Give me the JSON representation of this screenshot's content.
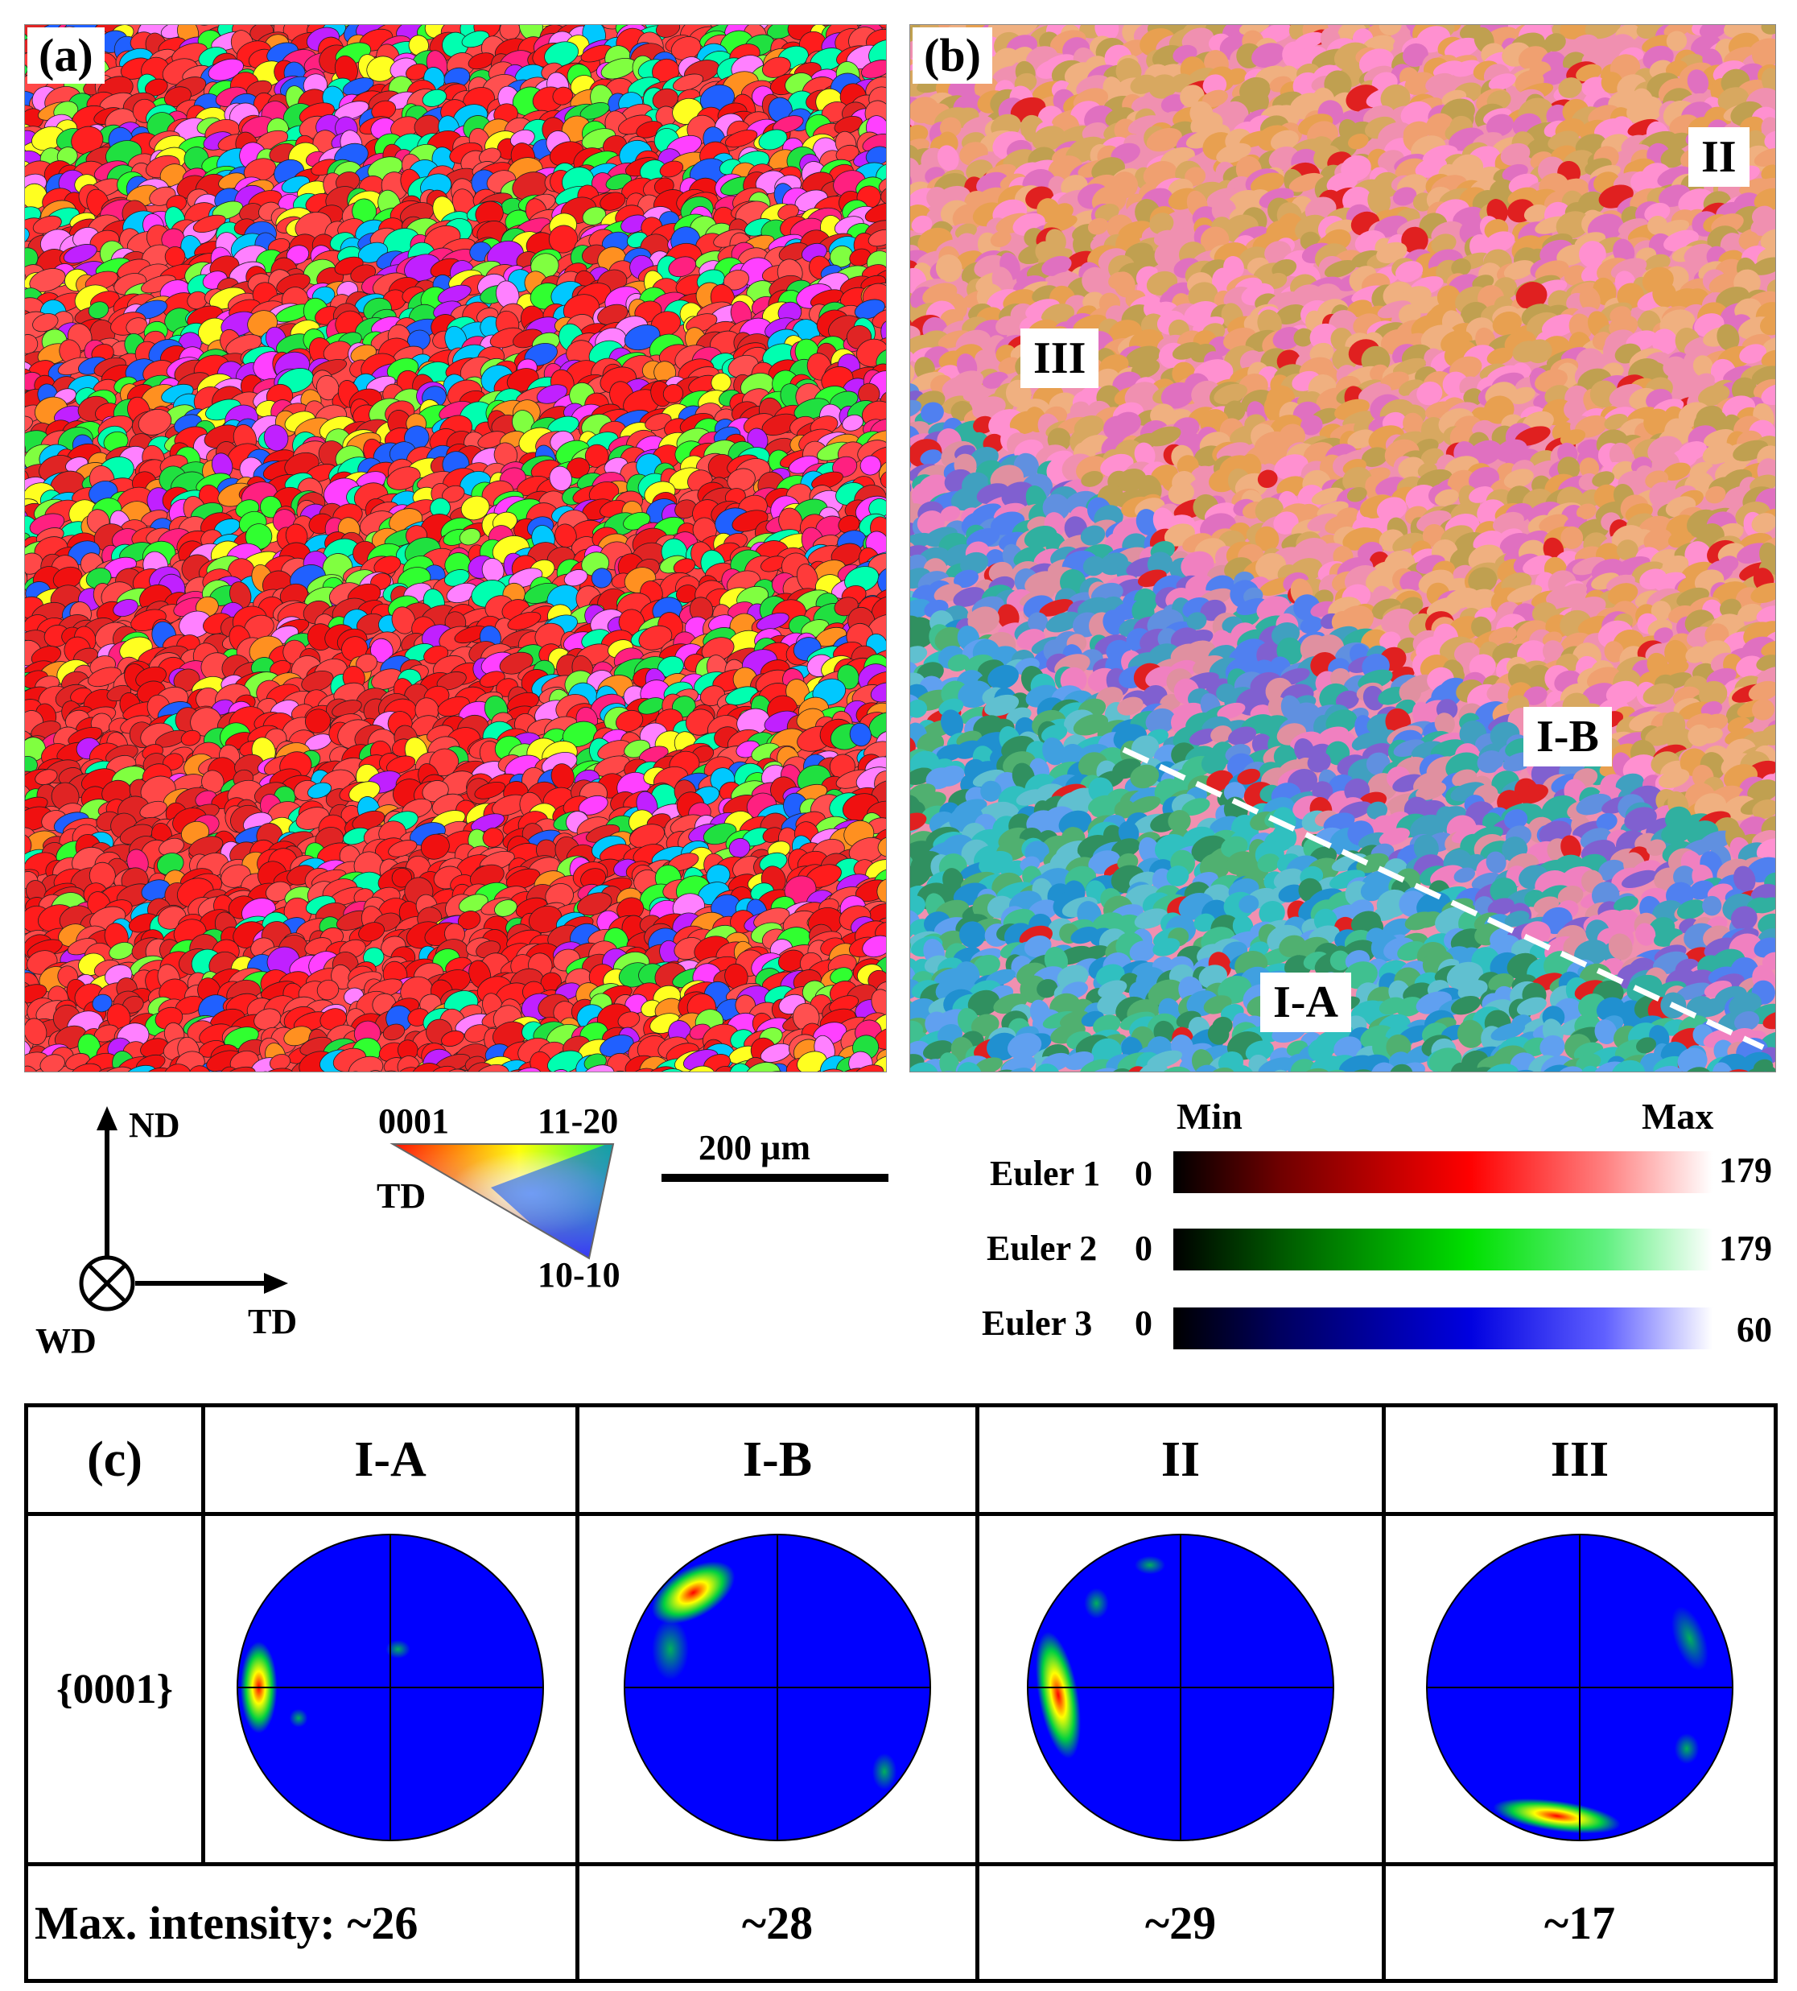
{
  "panel_a": {
    "tag": "(a)"
  },
  "panel_b": {
    "tag": "(b)",
    "regions": {
      "ii": "II",
      "iii": "III",
      "ib": "I-B",
      "ia": "I-A"
    }
  },
  "axes": {
    "nd": "ND",
    "td": "TD",
    "wd": "WD"
  },
  "ipf_key": {
    "top_left": "0001",
    "top_right": "11-20",
    "bottom": "10-10",
    "side": "TD"
  },
  "scale_bar": "200 µm",
  "euler_legend": {
    "min": "Min",
    "max": "Max",
    "bars": [
      {
        "label": "Euler 1",
        "min": "0",
        "max": "179",
        "color": "#ff0000"
      },
      {
        "label": "Euler 2",
        "min": "0",
        "max": "179",
        "color": "#00e000"
      },
      {
        "label": "Euler 3",
        "min": "0",
        "max": "60",
        "color": "#0000e0"
      }
    ]
  },
  "panel_c": {
    "tag": "(c)",
    "row_label": "{0001}",
    "columns": [
      "I-A",
      "I-B",
      "II",
      "III"
    ],
    "intensity_label": "Max. intensity: ~26",
    "intensities": [
      "~28",
      "~29",
      "~17"
    ]
  },
  "pole_figure_colors": {
    "background": "#0000ff",
    "low": "#00d040",
    "mid": "#ffff00",
    "high": "#ff0000"
  }
}
